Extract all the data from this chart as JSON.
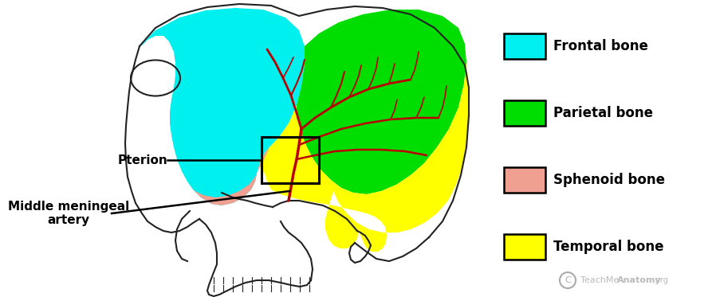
{
  "legend_items": [
    {
      "label": "Frontal bone",
      "color": "#00EFEF"
    },
    {
      "label": "Parietal bone",
      "color": "#00DD00"
    },
    {
      "label": "Sphenoid bone",
      "color": "#F0A090"
    },
    {
      "label": "Temporal bone",
      "color": "#FFFF00"
    }
  ],
  "label_pterion": "Pterion",
  "label_artery_line1": "Middle meningeal",
  "label_artery_line2": "artery",
  "watermark_text": "TeachMe",
  "watermark_bold": "Anatomy",
  "watermark_dot": ".org",
  "bg_color": "#FFFFFF",
  "artery_color": "#BB0000",
  "outline_color": "#222222"
}
